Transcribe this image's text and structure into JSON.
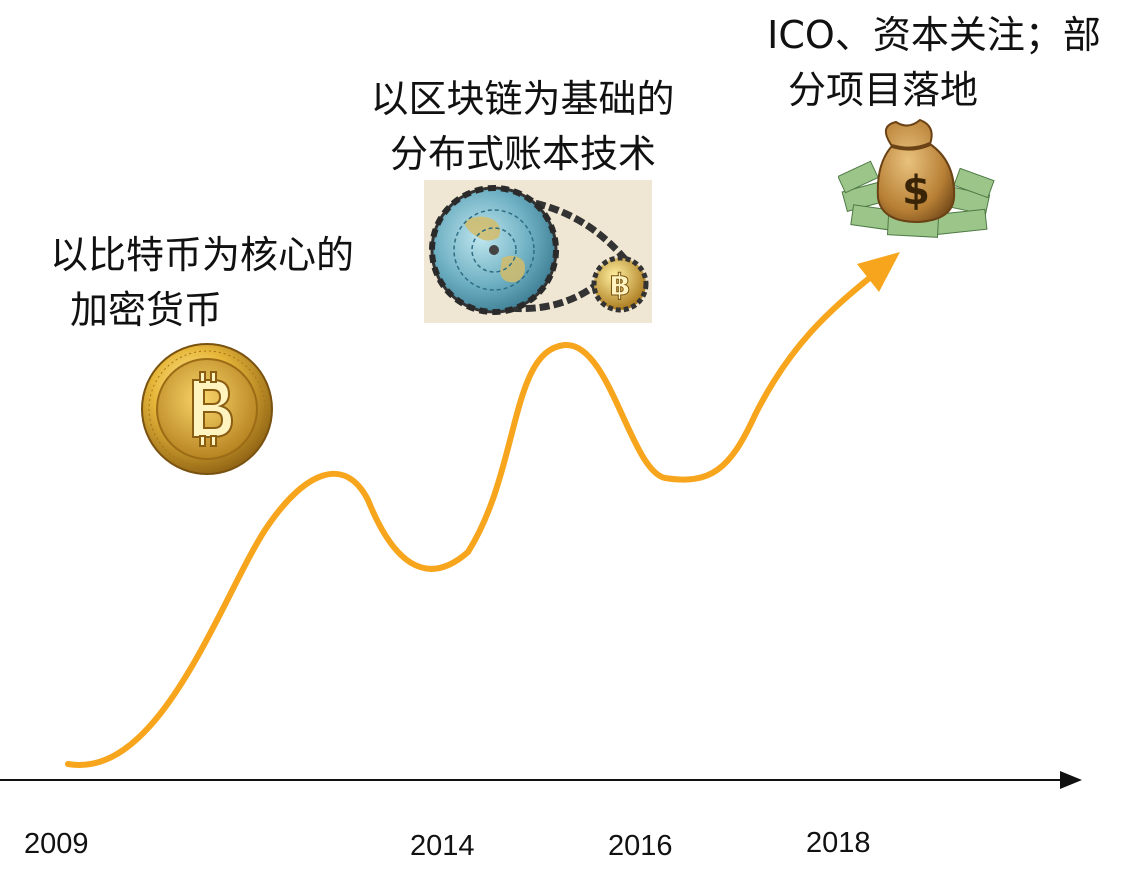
{
  "stages": [
    {
      "id": "crypto",
      "caption_lines": [
        "以比特币为核心的",
        "加密货币"
      ],
      "icon": "bitcoin-coin-icon"
    },
    {
      "id": "ledger",
      "caption_lines": [
        "以区块链为基础的",
        "分布式账本技术"
      ],
      "icon": "globe-blockchain-icon"
    },
    {
      "id": "ico",
      "caption_lines": [
        "ICO、资本关注；部",
        "分项目落地"
      ],
      "icon": "money-bag-icon"
    }
  ],
  "axis": {
    "year_labels": [
      "2009",
      "2014",
      "2016",
      "2018"
    ]
  },
  "colors": {
    "curve": "#F7A51C",
    "axis": "#111111",
    "gold": "#D9A521",
    "cash": "#7DAA6A"
  }
}
